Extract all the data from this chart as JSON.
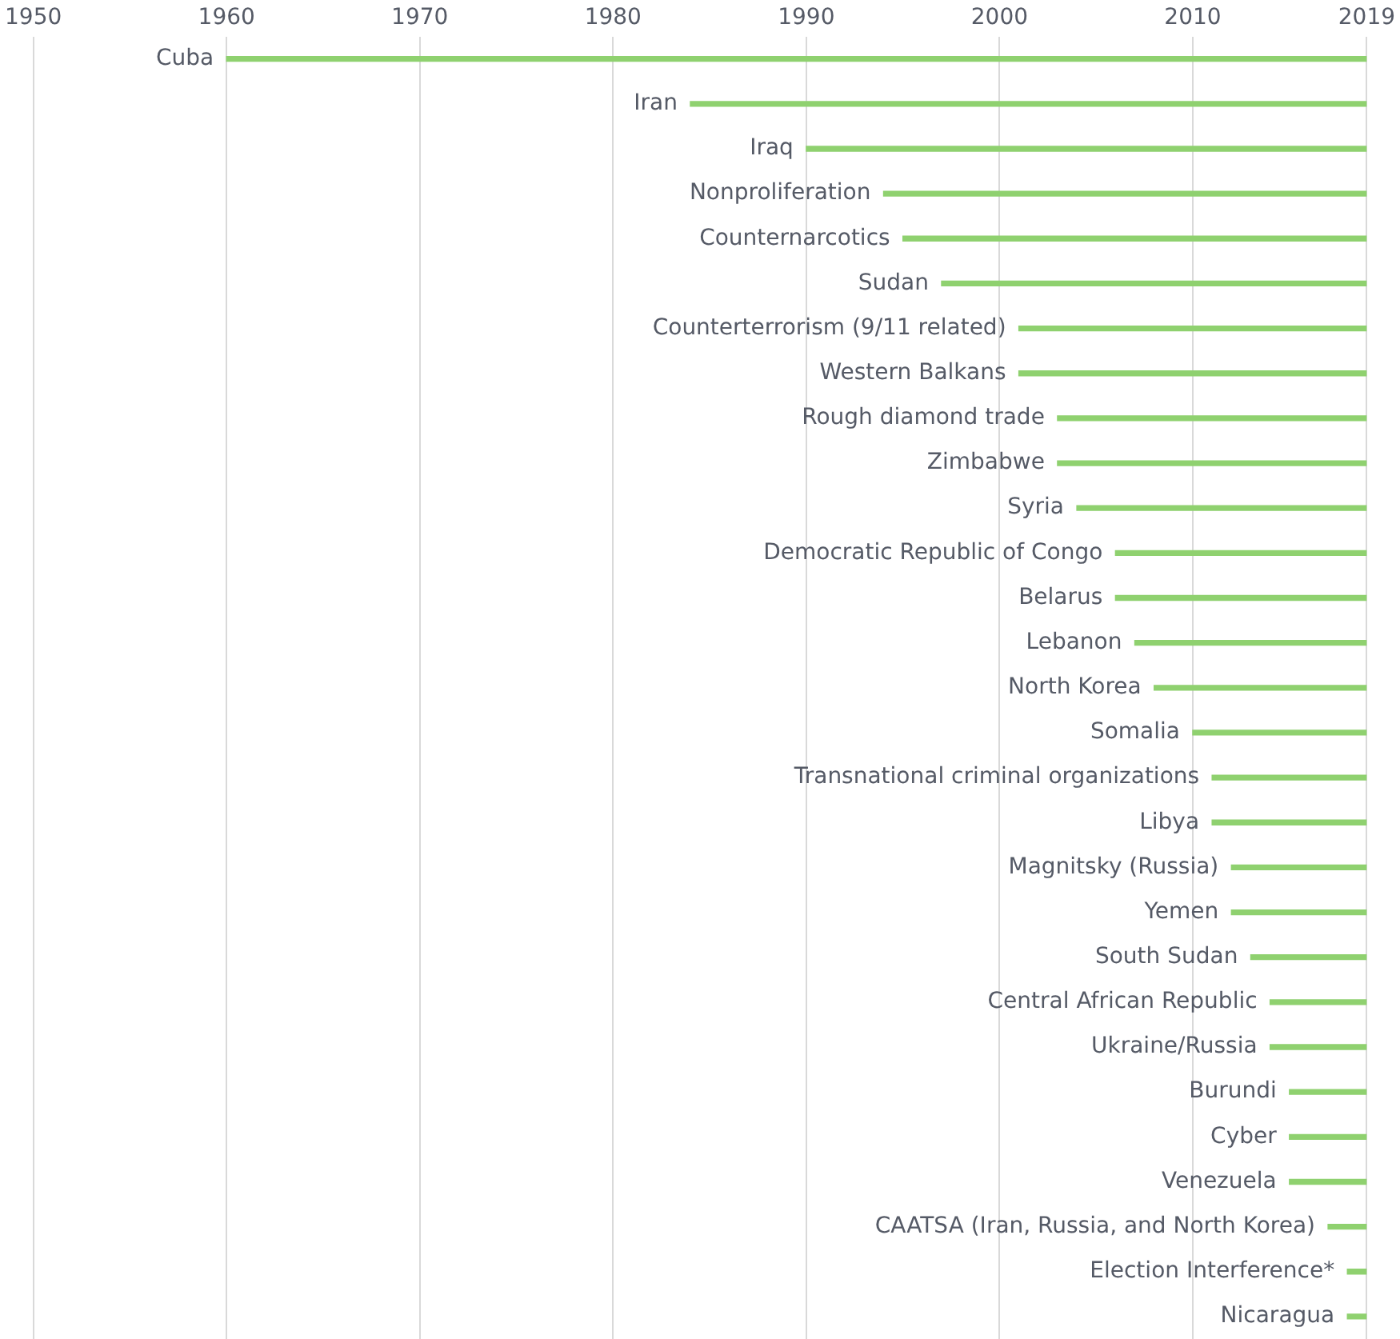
{
  "chart_data": {
    "type": "bar",
    "orientation": "horizontal",
    "categories": [
      "Cuba",
      "Iran",
      "Iraq",
      "Nonproliferation",
      "Counternarcotics",
      "Sudan",
      "Counterterrorism (9/11 related)",
      "Western Balkans",
      "Rough diamond trade",
      "Zimbabwe",
      "Syria",
      "Democratic Republic of Congo",
      "Belarus",
      "Lebanon",
      "North Korea",
      "Somalia",
      "Transnational criminal organizations",
      "Libya",
      "Magnitsky (Russia)",
      "Yemen",
      "South Sudan",
      "Central African Republic",
      "Ukraine/Russia",
      "Burundi",
      "Cyber",
      "Venezuela",
      "CAATSA (Iran, Russia, and North Korea)",
      "Election Interference*",
      "Nicaragua"
    ],
    "base": [
      1960,
      1984,
      1990,
      1994,
      1995,
      1997,
      2001,
      2001,
      2003,
      2003,
      2004,
      2006,
      2006,
      2007,
      2008,
      2010,
      2011,
      2011,
      2012,
      2012,
      2013,
      2014,
      2014,
      2015,
      2015,
      2015,
      2017,
      2018,
      2018
    ],
    "values": [
      59,
      35,
      29,
      25,
      24,
      22,
      18,
      18,
      16,
      16,
      15,
      13,
      13,
      12,
      11,
      9,
      8,
      8,
      7,
      7,
      6,
      5,
      5,
      4,
      4,
      4,
      2,
      1,
      1
    ],
    "color": "#8fd16f",
    "xlim": [
      1950,
      2019
    ],
    "xticks": [
      1950,
      1960,
      1970,
      1980,
      1990,
      2000,
      2010,
      2019
    ],
    "grid": "x",
    "legend": false
  }
}
